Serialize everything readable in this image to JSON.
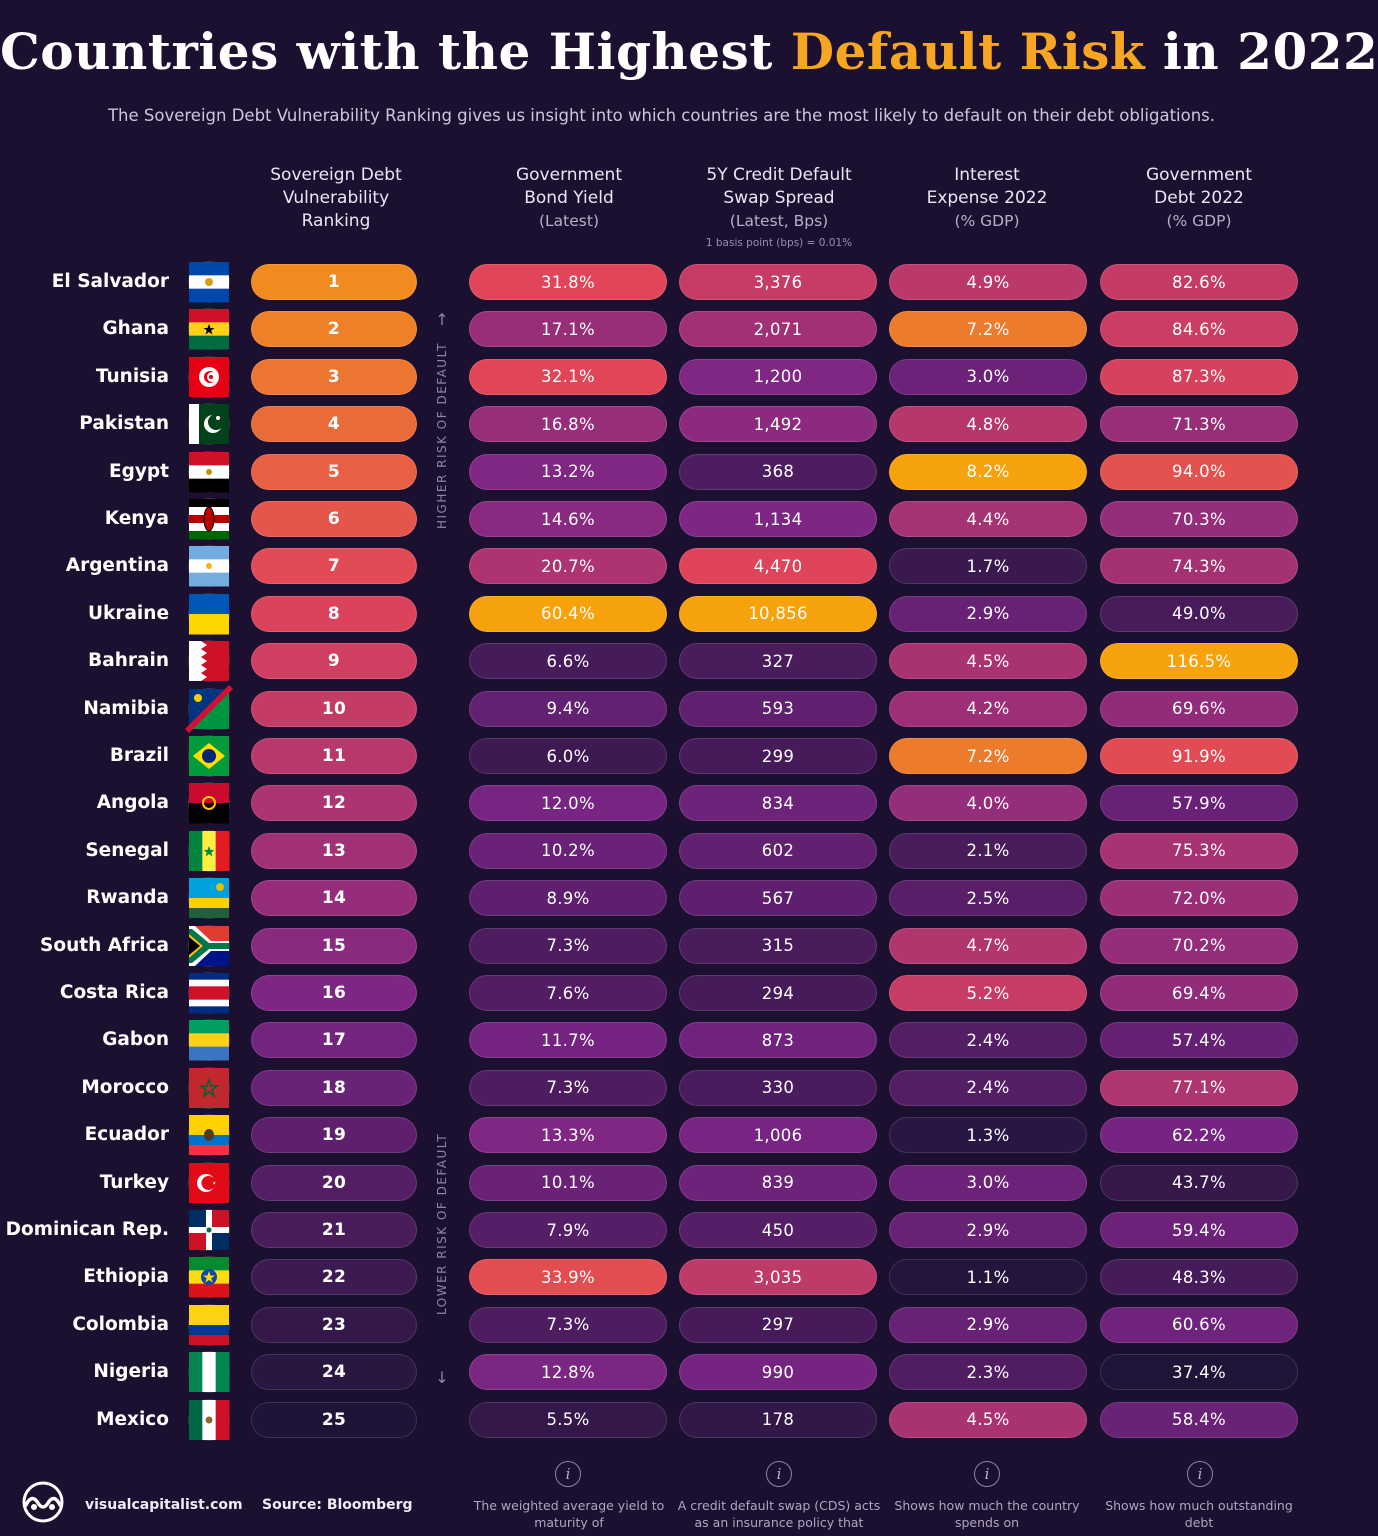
{
  "header": {
    "title_pre": "Countries with the Highest ",
    "title_highlight": "Default Risk",
    "title_post": " in 2022",
    "subtitle": "The Sovereign Debt Vulnerability Ranking gives us insight into which countries are the most likely to default on their debt obligations."
  },
  "columns": {
    "rank": {
      "line1": "Sovereign Debt",
      "line2": "Vulnerability",
      "line3": "Ranking"
    },
    "bond": {
      "line1": "Government",
      "line2": "Bond Yield",
      "sub": "(Latest)"
    },
    "cds": {
      "line1": "5Y Credit Default",
      "line2": "Swap Spread",
      "sub": "(Latest, Bps)",
      "note": "1 basis point (bps) = 0.01%"
    },
    "interest": {
      "line1": "Interest",
      "line2": "Expense 2022",
      "sub": "(% GDP)"
    },
    "debt": {
      "line1": "Government",
      "line2": "Debt 2022",
      "sub": "(% GDP)"
    }
  },
  "axis": {
    "higher": "HIGHER RISK OF DEFAULT",
    "lower": "LOWER RISK OF DEFAULT"
  },
  "footnotes": {
    "bond": "The weighted average yield to maturity of",
    "cds": "A credit default swap (CDS) acts as an insurance policy that",
    "interest": "Shows how much the country spends on",
    "debt": "Shows how much outstanding debt"
  },
  "footer": {
    "brand": "visualcapitalist.com",
    "source": "Source: Bloomberg"
  },
  "colors": {
    "background": "#1b1030",
    "title_highlight": "#f6a623",
    "scale_low": "#1f1438",
    "scale_mid": "#7a2585",
    "scale_high": "#e0445a",
    "scale_top": "#f6a20c"
  },
  "chart_data": {
    "type": "table",
    "title": "Countries with the Highest Default Risk in 2022",
    "columns": [
      "Sovereign Debt Vulnerability Ranking",
      "Government Bond Yield (Latest)",
      "5Y Credit Default Swap Spread (Latest, Bps)",
      "Interest Expense 2022 (% GDP)",
      "Government Debt 2022 (% GDP)"
    ],
    "rows": [
      {
        "country": "El Salvador",
        "flag": "el-salvador-flag",
        "rank": "1",
        "bond": "31.8%",
        "cds": "3,376",
        "interest": "4.9%",
        "debt": "82.6%"
      },
      {
        "country": "Ghana",
        "flag": "ghana-flag",
        "rank": "2",
        "bond": "17.1%",
        "cds": "2,071",
        "interest": "7.2%",
        "debt": "84.6%"
      },
      {
        "country": "Tunisia",
        "flag": "tunisia-flag",
        "rank": "3",
        "bond": "32.1%",
        "cds": "1,200",
        "interest": "3.0%",
        "debt": "87.3%"
      },
      {
        "country": "Pakistan",
        "flag": "pakistan-flag",
        "rank": "4",
        "bond": "16.8%",
        "cds": "1,492",
        "interest": "4.8%",
        "debt": "71.3%"
      },
      {
        "country": "Egypt",
        "flag": "egypt-flag",
        "rank": "5",
        "bond": "13.2%",
        "cds": "368",
        "interest": "8.2%",
        "debt": "94.0%"
      },
      {
        "country": "Kenya",
        "flag": "kenya-flag",
        "rank": "6",
        "bond": "14.6%",
        "cds": "1,134",
        "interest": "4.4%",
        "debt": "70.3%"
      },
      {
        "country": "Argentina",
        "flag": "argentina-flag",
        "rank": "7",
        "bond": "20.7%",
        "cds": "4,470",
        "interest": "1.7%",
        "debt": "74.3%"
      },
      {
        "country": "Ukraine",
        "flag": "ukraine-flag",
        "rank": "8",
        "bond": "60.4%",
        "cds": "10,856",
        "interest": "2.9%",
        "debt": "49.0%"
      },
      {
        "country": "Bahrain",
        "flag": "bahrain-flag",
        "rank": "9",
        "bond": "6.6%",
        "cds": "327",
        "interest": "4.5%",
        "debt": "116.5%"
      },
      {
        "country": "Namibia",
        "flag": "namibia-flag",
        "rank": "10",
        "bond": "9.4%",
        "cds": "593",
        "interest": "4.2%",
        "debt": "69.6%"
      },
      {
        "country": "Brazil",
        "flag": "brazil-flag",
        "rank": "11",
        "bond": "6.0%",
        "cds": "299",
        "interest": "7.2%",
        "debt": "91.9%"
      },
      {
        "country": "Angola",
        "flag": "angola-flag",
        "rank": "12",
        "bond": "12.0%",
        "cds": "834",
        "interest": "4.0%",
        "debt": "57.9%"
      },
      {
        "country": "Senegal",
        "flag": "senegal-flag",
        "rank": "13",
        "bond": "10.2%",
        "cds": "602",
        "interest": "2.1%",
        "debt": "75.3%"
      },
      {
        "country": "Rwanda",
        "flag": "rwanda-flag",
        "rank": "14",
        "bond": "8.9%",
        "cds": "567",
        "interest": "2.5%",
        "debt": "72.0%"
      },
      {
        "country": "South Africa",
        "flag": "south-africa-flag",
        "rank": "15",
        "bond": "7.3%",
        "cds": "315",
        "interest": "4.7%",
        "debt": "70.2%"
      },
      {
        "country": "Costa Rica",
        "flag": "costa-rica-flag",
        "rank": "16",
        "bond": "7.6%",
        "cds": "294",
        "interest": "5.2%",
        "debt": "69.4%"
      },
      {
        "country": "Gabon",
        "flag": "gabon-flag",
        "rank": "17",
        "bond": "11.7%",
        "cds": "873",
        "interest": "2.4%",
        "debt": "57.4%"
      },
      {
        "country": "Morocco",
        "flag": "morocco-flag",
        "rank": "18",
        "bond": "7.3%",
        "cds": "330",
        "interest": "2.4%",
        "debt": "77.1%"
      },
      {
        "country": "Ecuador",
        "flag": "ecuador-flag",
        "rank": "19",
        "bond": "13.3%",
        "cds": "1,006",
        "interest": "1.3%",
        "debt": "62.2%"
      },
      {
        "country": "Turkey",
        "flag": "turkey-flag",
        "rank": "20",
        "bond": "10.1%",
        "cds": "839",
        "interest": "3.0%",
        "debt": "43.7%"
      },
      {
        "country": "Dominican Rep.",
        "flag": "dominican-rep-flag",
        "rank": "21",
        "bond": "7.9%",
        "cds": "450",
        "interest": "2.9%",
        "debt": "59.4%"
      },
      {
        "country": "Ethiopia",
        "flag": "ethiopia-flag",
        "rank": "22",
        "bond": "33.9%",
        "cds": "3,035",
        "interest": "1.1%",
        "debt": "48.3%"
      },
      {
        "country": "Colombia",
        "flag": "colombia-flag",
        "rank": "23",
        "bond": "7.3%",
        "cds": "297",
        "interest": "2.9%",
        "debt": "60.6%"
      },
      {
        "country": "Nigeria",
        "flag": "nigeria-flag",
        "rank": "24",
        "bond": "12.8%",
        "cds": "990",
        "interest": "2.3%",
        "debt": "37.4%"
      },
      {
        "country": "Mexico",
        "flag": "mexico-flag",
        "rank": "25",
        "bond": "5.5%",
        "cds": "178",
        "interest": "4.5%",
        "debt": "58.4%"
      }
    ]
  }
}
